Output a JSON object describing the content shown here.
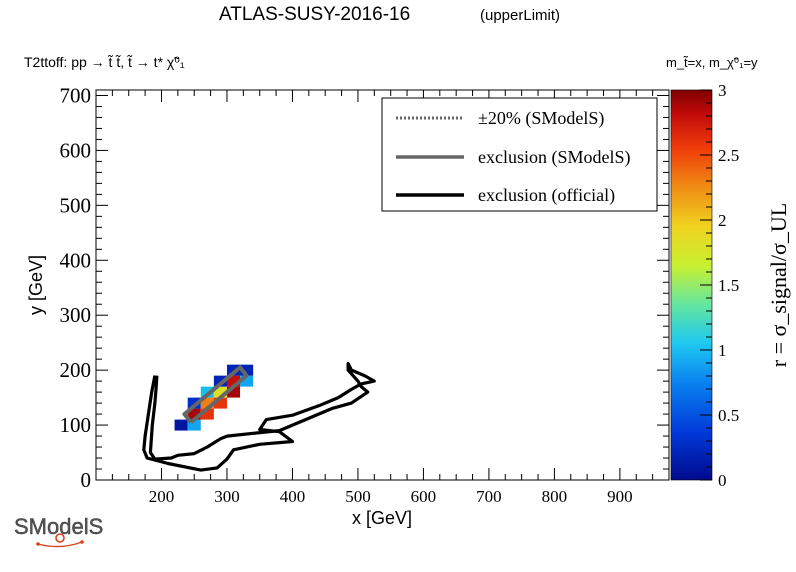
{
  "chart_data": {
    "type": "heatmap",
    "title": "ATLAS-SUSY-2016-16",
    "title_suffix": "(upperLimit)",
    "subtitle": "T2ttoff: pp → t̃ t̃, t̃ → t* χ̃⁰₁",
    "mass_note": "m_t̃=x, m_χ̃⁰₁=y",
    "xlabel": "x [GeV]",
    "ylabel": "y [GeV]",
    "zlabel": "r = σ_signal/σ_UL",
    "xlim": [
      100,
      975
    ],
    "ylim": [
      0,
      710
    ],
    "zlim": [
      0,
      3
    ],
    "x_ticks": [
      200,
      300,
      400,
      500,
      600,
      700,
      800,
      900
    ],
    "y_ticks": [
      0,
      100,
      200,
      300,
      400,
      500,
      600,
      700
    ],
    "z_ticks": [
      0,
      0.5,
      1,
      1.5,
      2,
      2.5,
      3
    ],
    "cell_size": [
      20,
      20
    ],
    "cells": [
      {
        "x": 230,
        "y": 100,
        "r": 0.1
      },
      {
        "x": 250,
        "y": 100,
        "r": 0.9
      },
      {
        "x": 250,
        "y": 120,
        "r": 2.9
      },
      {
        "x": 250,
        "y": 140,
        "r": 0.3
      },
      {
        "x": 270,
        "y": 120,
        "r": 2.6
      },
      {
        "x": 270,
        "y": 140,
        "r": 2.3
      },
      {
        "x": 270,
        "y": 160,
        "r": 1.0
      },
      {
        "x": 290,
        "y": 140,
        "r": 2.6
      },
      {
        "x": 290,
        "y": 160,
        "r": 1.8
      },
      {
        "x": 290,
        "y": 180,
        "r": 0.2
      },
      {
        "x": 310,
        "y": 160,
        "r": 2.9
      },
      {
        "x": 310,
        "y": 180,
        "r": 2.8
      },
      {
        "x": 310,
        "y": 200,
        "r": 0.2
      },
      {
        "x": 330,
        "y": 180,
        "r": 0.9
      },
      {
        "x": 330,
        "y": 200,
        "r": 0.2
      }
    ],
    "legend": {
      "position": "top-right",
      "entries": [
        {
          "label": "±20% (SModelS)",
          "style": "dotted",
          "color": "#666666"
        },
        {
          "label": "exclusion (SModelS)",
          "style": "solid",
          "color": "#666666"
        },
        {
          "label": "exclusion (official)",
          "style": "solid",
          "color": "#000000"
        }
      ]
    },
    "exclusion_smodels": [
      [
        245,
        105
      ],
      [
        330,
        190
      ],
      [
        320,
        205
      ],
      [
        235,
        120
      ],
      [
        245,
        105
      ]
    ],
    "exclusion_official": [
      [
        190,
        190
      ],
      [
        185,
        160
      ],
      [
        180,
        120
      ],
      [
        175,
        80
      ],
      [
        173,
        55
      ],
      [
        178,
        40
      ],
      [
        210,
        30
      ],
      [
        260,
        18
      ],
      [
        285,
        22
      ],
      [
        300,
        38
      ],
      [
        310,
        55
      ],
      [
        350,
        65
      ],
      [
        400,
        70
      ],
      [
        380,
        88
      ],
      [
        350,
        92
      ],
      [
        360,
        110
      ],
      [
        400,
        118
      ],
      [
        440,
        135
      ],
      [
        470,
        150
      ],
      [
        490,
        165
      ],
      [
        505,
        175
      ],
      [
        525,
        180
      ],
      [
        510,
        190
      ],
      [
        490,
        200
      ],
      [
        485,
        212
      ],
      [
        485,
        200
      ],
      [
        500,
        180
      ],
      [
        505,
        170
      ],
      [
        515,
        160
      ],
      [
        490,
        140
      ],
      [
        460,
        130
      ],
      [
        420,
        110
      ],
      [
        380,
        90
      ],
      [
        340,
        85
      ],
      [
        300,
        80
      ],
      [
        290,
        75
      ],
      [
        270,
        60
      ],
      [
        250,
        48
      ],
      [
        225,
        45
      ],
      [
        215,
        40
      ],
      [
        190,
        38
      ],
      [
        183,
        50
      ],
      [
        186,
        100
      ],
      [
        190,
        140
      ],
      [
        192,
        170
      ],
      [
        193,
        190
      ]
    ]
  },
  "logo": {
    "text": "SModelS"
  }
}
